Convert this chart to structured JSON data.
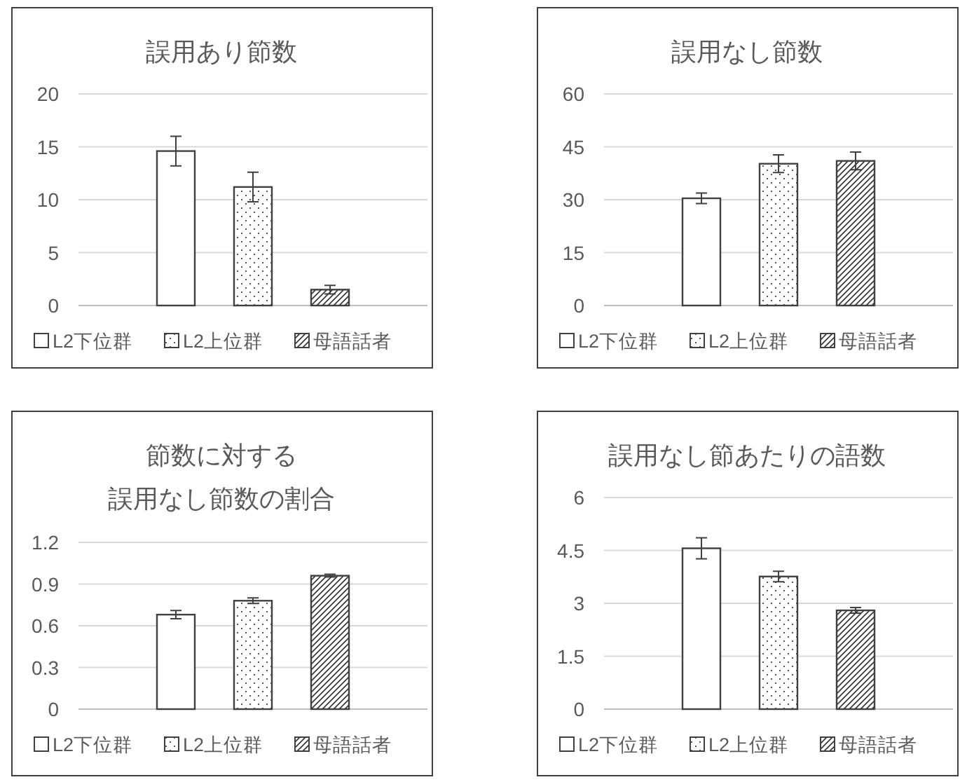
{
  "chart_data": [
    {
      "type": "bar",
      "title": "誤用あり節数",
      "categories": [
        null
      ],
      "ylim": [
        0,
        20
      ],
      "yticks": [
        0,
        5,
        10,
        15,
        20
      ],
      "grid": "y",
      "legend": "bottom",
      "series": [
        {
          "name": "L2下位群",
          "color": "#404040",
          "values": [
            14.6
          ],
          "errors": [
            1.4
          ]
        },
        {
          "name": "L2上位群",
          "color": "#404040",
          "values": [
            11.2
          ],
          "errors": [
            1.4
          ]
        },
        {
          "name": "母語話者",
          "color": "#404040",
          "values": [
            1.5
          ],
          "errors": [
            0.4
          ]
        }
      ]
    },
    {
      "type": "bar",
      "title": "誤用なし節数",
      "categories": [
        null
      ],
      "ylim": [
        0,
        60
      ],
      "yticks": [
        0,
        15,
        30,
        45,
        60
      ],
      "grid": "y",
      "legend": "bottom",
      "series": [
        {
          "name": "L2下位群",
          "color": "#404040",
          "values": [
            30.4
          ],
          "errors": [
            1.5
          ]
        },
        {
          "name": "L2上位群",
          "color": "#404040",
          "values": [
            40.2
          ],
          "errors": [
            2.5
          ]
        },
        {
          "name": "母語話者",
          "color": "#404040",
          "values": [
            41
          ],
          "errors": [
            2.5
          ]
        }
      ]
    },
    {
      "type": "bar",
      "title": "節数に対する誤用なし節数の割合",
      "categories": [
        null
      ],
      "ylim": [
        0,
        1.2
      ],
      "yticks": [
        0,
        0.3,
        0.6,
        0.9,
        1.2
      ],
      "grid": "y",
      "legend": "bottom",
      "series": [
        {
          "name": "L2下位群",
          "color": "#404040",
          "values": [
            0.68
          ],
          "errors": [
            0.03
          ]
        },
        {
          "name": "L2上位群",
          "color": "#404040",
          "values": [
            0.78
          ],
          "errors": [
            0.02
          ]
        },
        {
          "name": "母語話者",
          "color": "#404040",
          "values": [
            0.96
          ],
          "errors": [
            0.01
          ]
        }
      ]
    },
    {
      "type": "bar",
      "title": "誤用なし節あたりの語数",
      "categories": [
        null
      ],
      "ylim": [
        0,
        6
      ],
      "yticks": [
        0,
        1.5,
        3,
        4.5,
        6
      ],
      "grid": "y",
      "legend": "bottom",
      "series": [
        {
          "name": "L2下位群",
          "color": "#404040",
          "values": [
            4.56
          ],
          "errors": [
            0.3
          ]
        },
        {
          "name": "L2上位群",
          "color": "#404040",
          "values": [
            3.76
          ],
          "errors": [
            0.15
          ]
        },
        {
          "name": "母語話者",
          "color": "#404040",
          "values": [
            2.8
          ],
          "errors": [
            0.08
          ]
        }
      ]
    }
  ]
}
